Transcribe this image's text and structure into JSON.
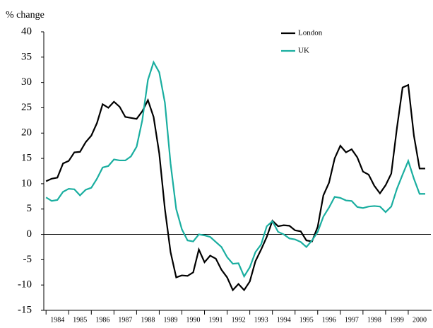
{
  "chart_data": {
    "type": "line",
    "y_label": "% change",
    "x": [
      1984,
      1984.25,
      1984.5,
      1984.75,
      1985,
      1985.25,
      1985.5,
      1985.75,
      1986,
      1986.25,
      1986.5,
      1986.75,
      1987,
      1987.25,
      1987.5,
      1987.75,
      1988,
      1988.25,
      1988.5,
      1988.75,
      1989,
      1989.25,
      1989.5,
      1989.75,
      1990,
      1990.25,
      1990.5,
      1990.75,
      1991,
      1991.25,
      1991.5,
      1991.75,
      1992,
      1992.25,
      1992.5,
      1992.75,
      1993,
      1993.25,
      1993.5,
      1993.75,
      1994,
      1994.25,
      1994.5,
      1994.75,
      1995,
      1995.25,
      1995.5,
      1995.75,
      1996,
      1996.25,
      1996.5,
      1996.75,
      1997,
      1997.25,
      1997.5,
      1997.75,
      1998,
      1998.25,
      1998.5,
      1998.75,
      1999,
      1999.25,
      1999.5,
      1999.75,
      2000,
      2000.25,
      2000.5,
      2000.75
    ],
    "series": [
      {
        "name": "London",
        "color": "#000000",
        "values": [
          10.5,
          11,
          11.2,
          14,
          14.5,
          16.2,
          16.3,
          18.2,
          19.5,
          22,
          25.7,
          25,
          26.2,
          25.2,
          23.2,
          23,
          22.8,
          24.3,
          26.5,
          23.2,
          16,
          5,
          -3.5,
          -8.5,
          -8.1,
          -8.2,
          -7.5,
          -3,
          -5.5,
          -4.2,
          -4.8,
          -7,
          -8.5,
          -11,
          -9.8,
          -11,
          -9.3,
          -5.3,
          -3,
          -0.5,
          2.7,
          1.6,
          1.8,
          1.7,
          0.8,
          0.6,
          -1.2,
          -1.4,
          1.5,
          7.7,
          10.2,
          15,
          17.5,
          16.2,
          16.8,
          15.2,
          12.4,
          11.8,
          9.6,
          8.1,
          9.7,
          12,
          21,
          29,
          29.5,
          19.5,
          13,
          13
        ]
      },
      {
        "name": "UK",
        "color": "#1aaea0",
        "values": [
          7.3,
          6.6,
          6.8,
          8.4,
          9,
          8.9,
          7.7,
          8.8,
          9.2,
          11,
          13.2,
          13.5,
          14.8,
          14.6,
          14.6,
          15.4,
          17.3,
          22.5,
          30.5,
          34,
          32,
          26,
          14,
          5,
          1,
          -1.2,
          -1.4,
          0,
          -0.2,
          -0.5,
          -1.5,
          -2.5,
          -4.5,
          -5.8,
          -5.7,
          -8.3,
          -6.5,
          -3.5,
          -2,
          1.6,
          2.6,
          0.5,
          0,
          -0.8,
          -1,
          -1.5,
          -2.5,
          -1.2,
          0.5,
          3.5,
          5.3,
          7.4,
          7.2,
          6.7,
          6.6,
          5.4,
          5.2,
          5.5,
          5.6,
          5.5,
          4.4,
          5.5,
          9,
          11.8,
          14.5,
          11,
          8,
          8
        ]
      }
    ],
    "xlim": [
      1983.9,
      2001
    ],
    "xticks": [
      1984,
      1985,
      1986,
      1987,
      1988,
      1989,
      1990,
      1991,
      1992,
      1993,
      1994,
      1995,
      1996,
      1997,
      1998,
      1999,
      2000
    ],
    "ylim": [
      -15,
      40
    ],
    "yticks": [
      -15,
      -10,
      -5,
      0,
      5,
      10,
      15,
      20,
      25,
      30,
      35,
      40
    ],
    "zero_line": true,
    "legend": "top"
  }
}
